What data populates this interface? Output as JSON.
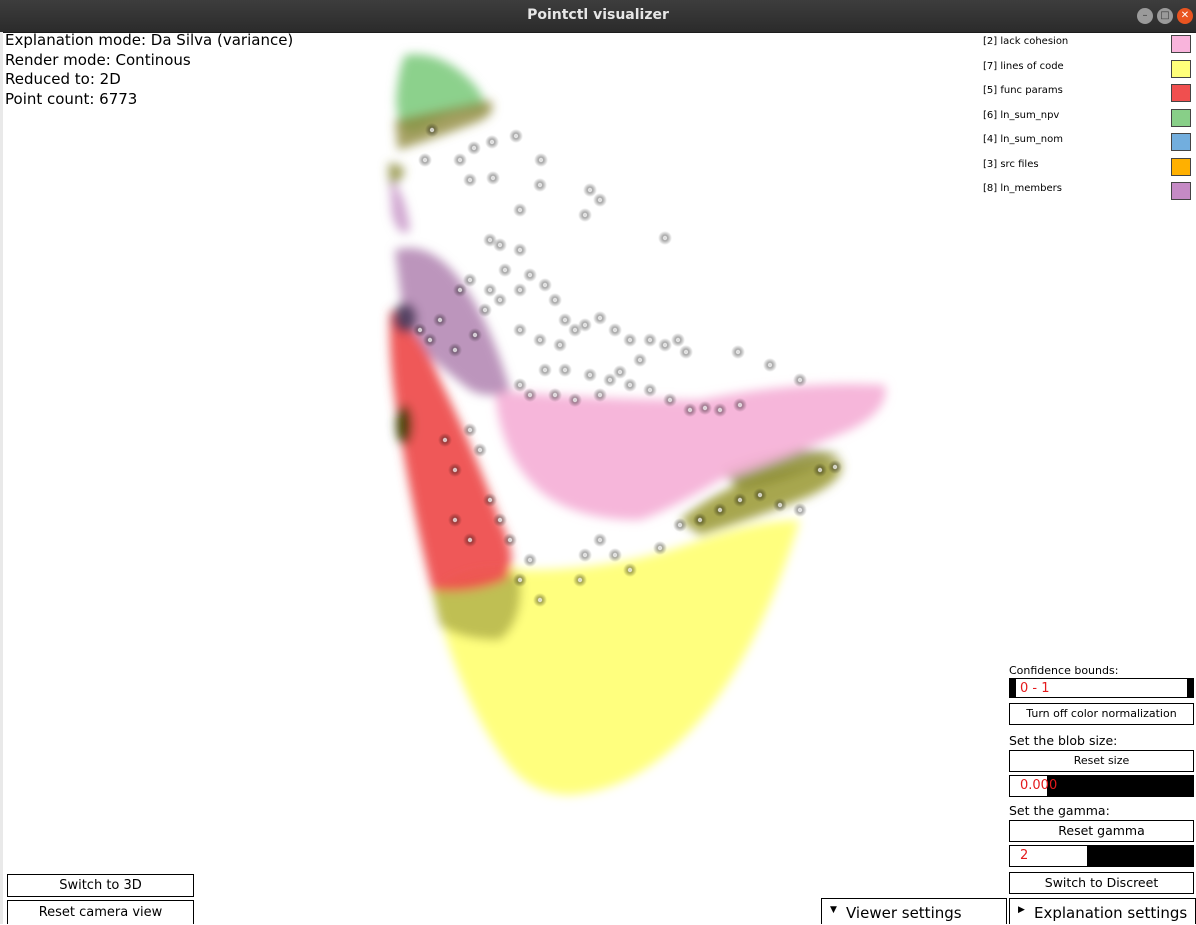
{
  "window": {
    "title": "Pointctl visualizer"
  },
  "info": {
    "explanation_mode": "Explanation mode: Da Silva (variance)",
    "render_mode": "Render mode: Continous",
    "reduced_to": "Reduced to: 2D",
    "point_count": "Point count: 6773"
  },
  "legend": [
    {
      "label": "[2] lack cohesion",
      "color": "#f9b4dc"
    },
    {
      "label": "[7] lines of code",
      "color": "#ffff7a"
    },
    {
      "label": "[5] func params",
      "color": "#f04f4f"
    },
    {
      "label": "[6] ln_sum_npv",
      "color": "#88cf88"
    },
    {
      "label": "[4] ln_sum_nom",
      "color": "#72aede"
    },
    {
      "label": "[3] src files",
      "color": "#ffb000"
    },
    {
      "label": "[8] ln_members",
      "color": "#c58ac5"
    }
  ],
  "controls": {
    "confidence_label": "Confidence bounds:",
    "confidence_value": "0 - 1",
    "color_norm_button": "Turn off color normalization",
    "blob_label": "Set the blob size:",
    "reset_size_button": "Reset size",
    "blob_value": "0.000",
    "blob_fill": 0.2,
    "gamma_label": "Set the gamma:",
    "reset_gamma_button": "Reset gamma",
    "gamma_value": "2",
    "gamma_fill": 0.42,
    "switch_discreet_button": "Switch to Discreet"
  },
  "bottom": {
    "switch_3d": "Switch to 3D",
    "reset_camera": "Reset camera view",
    "viewer_settings": "Viewer settings",
    "explanation_settings": "Explanation settings"
  }
}
